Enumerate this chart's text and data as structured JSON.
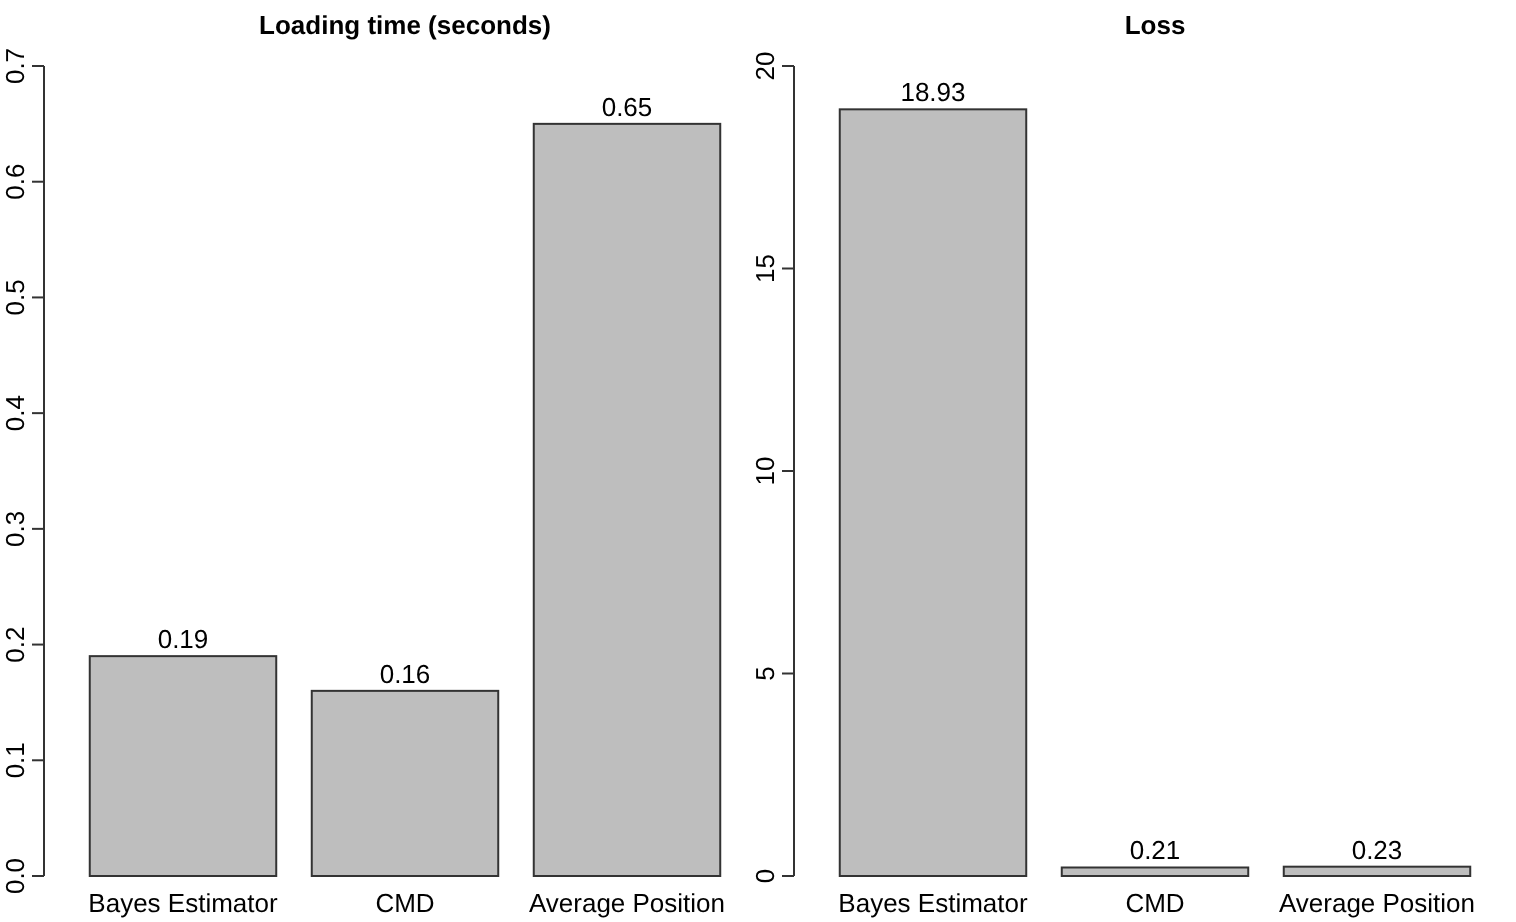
{
  "chart_data": [
    {
      "type": "bar",
      "title": "Loading time (seconds)",
      "categories": [
        "Bayes Estimator",
        "CMD",
        "Average Position"
      ],
      "values": [
        0.19,
        0.16,
        0.65
      ],
      "color": "#bebebe",
      "ylim": [
        0,
        0.7
      ],
      "yticks": [
        {
          "value": 0,
          "label": "0.0"
        },
        0.1,
        0.2,
        0.3,
        0.4,
        0.5,
        0.6,
        0.7
      ],
      "data_labels": true
    },
    {
      "type": "bar",
      "title": "Loss",
      "categories": [
        "Bayes Estimator",
        "CMD",
        "Average Position"
      ],
      "values": [
        18.93,
        0.21,
        0.23
      ],
      "color": "#bebebe",
      "ylim": [
        0,
        20
      ],
      "yticks": [
        0,
        5,
        10,
        15,
        20
      ],
      "data_labels": true
    }
  ]
}
